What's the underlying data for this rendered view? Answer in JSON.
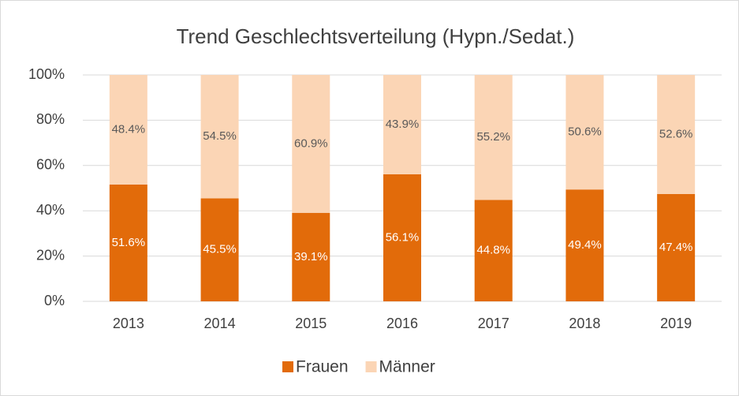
{
  "chart_data": {
    "type": "stacked_bar",
    "title": "Trend Geschlechtsverteilung (Hypn./Sedat.)",
    "categories": [
      "2013",
      "2014",
      "2015",
      "2016",
      "2017",
      "2018",
      "2019"
    ],
    "series": [
      {
        "name": "Frauen",
        "color": "#e26b0a",
        "label_color": "#ffffff",
        "values": [
          51.6,
          45.5,
          39.1,
          56.1,
          44.8,
          49.4,
          47.4
        ],
        "value_labels": [
          "51.6%",
          "45.5%",
          "39.1%",
          "56.1%",
          "44.8%",
          "49.4%",
          "47.4%"
        ]
      },
      {
        "name": "Männer",
        "color": "#fbd5b5",
        "label_color": "#595959",
        "values": [
          48.4,
          54.5,
          60.9,
          43.9,
          55.2,
          50.6,
          52.6
        ],
        "value_labels": [
          "48.4%",
          "54.5%",
          "60.9%",
          "43.9%",
          "55.2%",
          "50.6%",
          "52.6%"
        ]
      }
    ],
    "ylim": [
      0,
      100
    ],
    "yticks": [
      {
        "value": 0,
        "label": "0%"
      },
      {
        "value": 20,
        "label": "20%"
      },
      {
        "value": 40,
        "label": "40%"
      },
      {
        "value": 60,
        "label": "60%"
      },
      {
        "value": 80,
        "label": "80%"
      },
      {
        "value": 100,
        "label": "100%"
      }
    ],
    "grid": true,
    "legend": "bottom"
  }
}
